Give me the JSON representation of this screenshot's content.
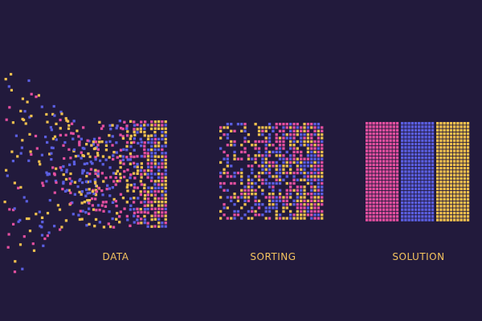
{
  "captions": {
    "data": "DATA",
    "sorting": "SORTING",
    "solution": "SOLUTION"
  },
  "colors": {
    "background": "#221a3c",
    "caption": "#f4c35e",
    "pink": "#e44fa0",
    "blue": "#5a5ee0",
    "yellow": "#f0c04e"
  }
}
